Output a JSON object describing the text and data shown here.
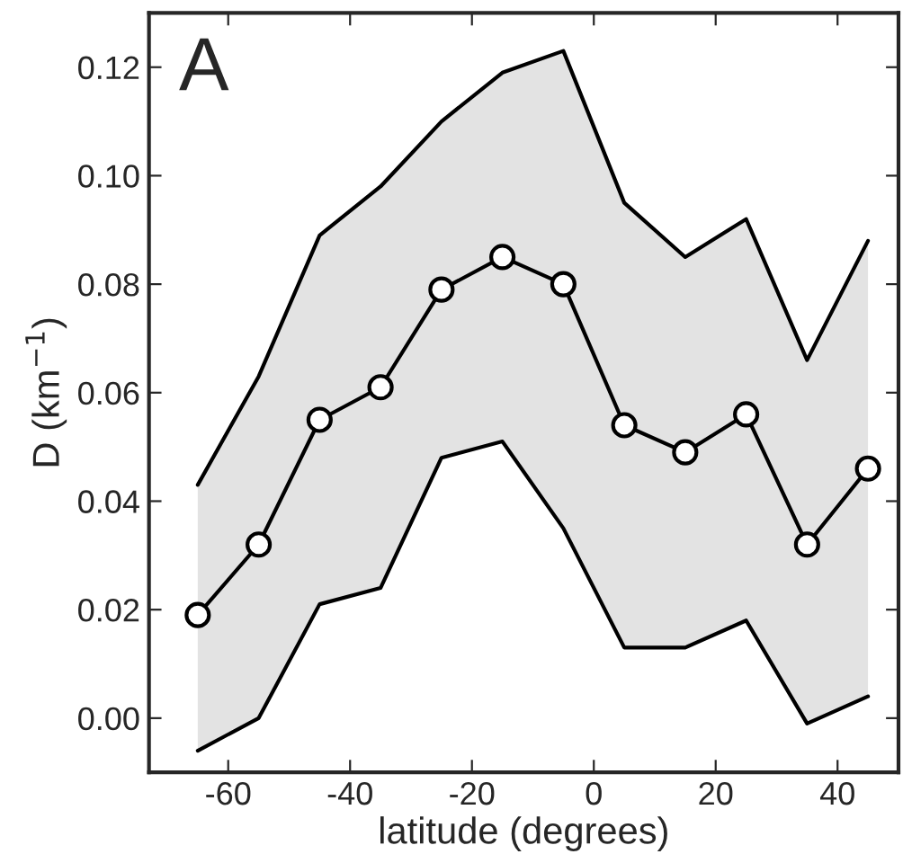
{
  "chart_data": {
    "type": "line",
    "xlabel": "latitude (degrees)",
    "ylabel": "D (km$^{−1}$)",
    "annotations": [
      "A"
    ],
    "x": [
      -65,
      -55,
      -45,
      -35,
      -25,
      -15,
      -5,
      5,
      15,
      25,
      35,
      45
    ],
    "series": [
      {
        "color": "#000000",
        "marker": "none",
        "values": [
          0.043,
          0.063,
          0.089,
          0.098,
          0.11,
          0.119,
          0.123,
          0.095,
          0.085,
          0.092,
          0.066,
          0.088
        ]
      },
      {
        "color": "#000000",
        "marker": "none",
        "values": [
          -0.006,
          0.0,
          0.021,
          0.024,
          0.048,
          0.051,
          0.035,
          0.013,
          0.013,
          0.018,
          -0.001,
          0.004
        ]
      },
      {
        "color": "#000000",
        "values": [
          0.019,
          0.032,
          0.055,
          0.061,
          0.079,
          0.085,
          0.08,
          0.054,
          0.049,
          0.056,
          0.032,
          0.046
        ],
        "lower": [
          -0.006,
          0.0,
          0.021,
          0.024,
          0.048,
          0.051,
          0.035,
          0.013,
          0.013,
          0.018,
          -0.001,
          0.004
        ],
        "upper": [
          0.043,
          0.063,
          0.089,
          0.098,
          0.11,
          0.119,
          0.123,
          0.095,
          0.085,
          0.092,
          0.066,
          0.088
        ]
      }
    ],
    "xlim": [
      -73,
      50
    ],
    "xticks": [
      -60,
      -40,
      -20,
      0,
      20,
      40
    ],
    "ylim": [
      -0.01,
      0.13
    ],
    "yticks": [
      {
        "value": 0,
        "label": "0.00"
      },
      {
        "value": 0.02,
        "label": "0.02"
      },
      {
        "value": 0.04,
        "label": "0.04"
      },
      {
        "value": 0.06,
        "label": "0.06"
      },
      {
        "value": 0.08,
        "label": "0.08"
      },
      {
        "value": 0.1,
        "label": "0.10"
      },
      {
        "value": 0.12,
        "label": "0.12"
      }
    ],
    "marker": "circle",
    "line_style": "solid",
    "grid": false,
    "legend": false
  }
}
